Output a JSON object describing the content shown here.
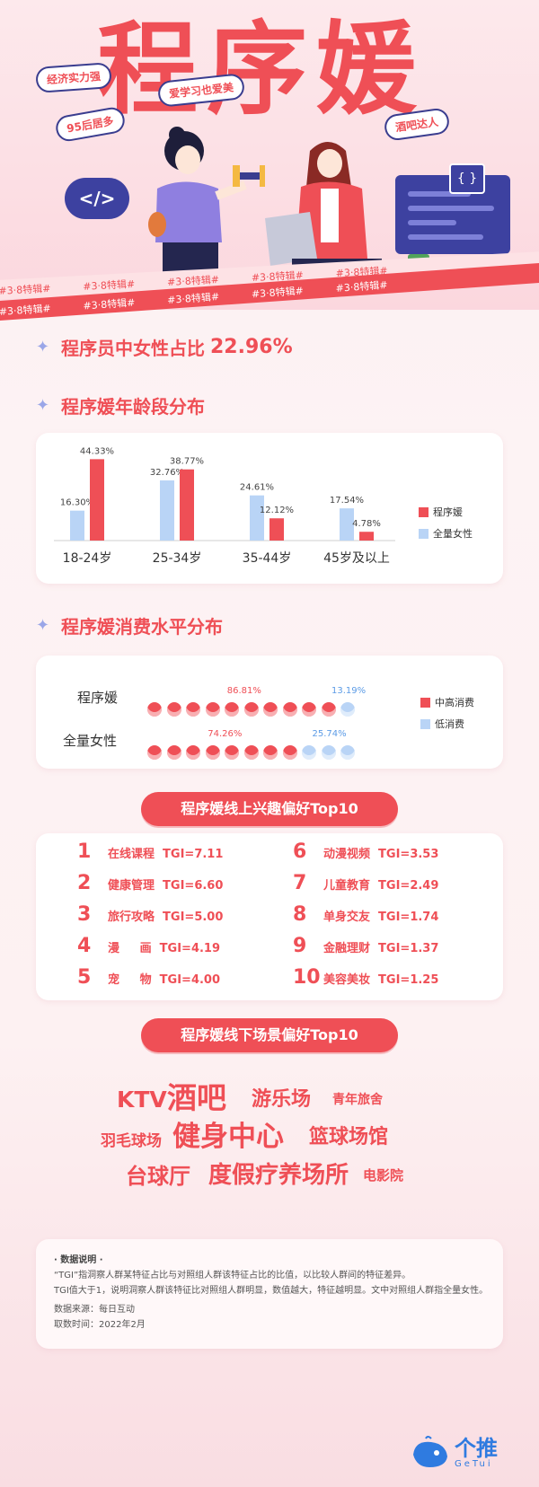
{
  "hero": {
    "title": "程序媛",
    "tags": [
      "经济实力强",
      "爱学习也爱美",
      "95后居多",
      "酒吧达人"
    ],
    "code_badge": "</>",
    "braces": "{ }",
    "ribbon_text": "#3·8特辑#"
  },
  "stat": {
    "label": "程序员中女性占比",
    "value": "22.96%"
  },
  "age_section": {
    "heading": "程序媛年龄段分布"
  },
  "consumption_section": {
    "heading": "程序媛消费水平分布"
  },
  "chart_data": [
    {
      "type": "bar",
      "categories": [
        "18-24岁",
        "25-34岁",
        "35-44岁",
        "45岁及以上"
      ],
      "series": [
        {
          "name": "全量女性",
          "values": [
            16.3,
            32.76,
            24.61,
            17.54
          ],
          "labels": [
            "16.30%",
            "32.76%",
            "24.61%",
            "17.54%"
          ],
          "color": "#b9d4f6"
        },
        {
          "name": "程序媛",
          "values": [
            44.33,
            38.77,
            12.12,
            4.78
          ],
          "labels": [
            "44.33%",
            "38.77%",
            "12.12%",
            "4.78%"
          ],
          "color": "#ef4f56"
        }
      ],
      "legend": "right"
    },
    {
      "type": "bar",
      "categories": [
        "程序媛",
        "全量女性"
      ],
      "series": [
        {
          "name": "中高消费",
          "values": [
            86.81,
            74.26
          ],
          "labels": [
            "86.81%",
            "74.26%"
          ],
          "color": "#ef4f56"
        },
        {
          "name": "低消费",
          "values": [
            13.19,
            25.74
          ],
          "labels": [
            "13.19%",
            "25.74%"
          ],
          "color": "#b9d4f6"
        }
      ],
      "legend": "right"
    }
  ],
  "online_top10": {
    "title": "程序媛线上兴趣偏好Top10",
    "items": [
      {
        "rank": "1",
        "text": "在线课程  TGI=7.11"
      },
      {
        "rank": "2",
        "text": "健康管理  TGI=6.60"
      },
      {
        "rank": "3",
        "text": "旅行攻略  TGI=5.00"
      },
      {
        "rank": "4",
        "text": "漫     画  TGI=4.19"
      },
      {
        "rank": "5",
        "text": "宠     物  TGI=4.00"
      },
      {
        "rank": "6",
        "text": "动漫视频  TGI=3.53"
      },
      {
        "rank": "7",
        "text": "儿童教育  TGI=2.49"
      },
      {
        "rank": "8",
        "text": "单身交友  TGI=1.74"
      },
      {
        "rank": "9",
        "text": "金融理财  TGI=1.37"
      },
      {
        "rank": "10",
        "text": "美容美妆  TGI=1.25"
      }
    ]
  },
  "offline_top10": {
    "title": "程序媛线下场景偏好Top10",
    "words": [
      "KTV",
      "酒吧",
      "游乐场",
      "青年旅舍",
      "羽毛球场",
      "健身中心",
      "篮球场馆",
      "台球厅",
      "度假疗养场所",
      "电影院"
    ]
  },
  "notes": {
    "title": "· 数据说明 ·",
    "line1": "“TGI”指洞察人群某特征占比与对照组人群该特征占比的比值，以比较人群间的特征差异。",
    "line2": "TGI值大于1，说明洞察人群该特征比对照组人群明显，数值越大，特征越明显。文中对照组人群指全量女性。",
    "source": "数据来源：每日互动",
    "time": "取数时间：2022年2月"
  },
  "logo": {
    "name": "个推",
    "sub": "GeTui"
  }
}
